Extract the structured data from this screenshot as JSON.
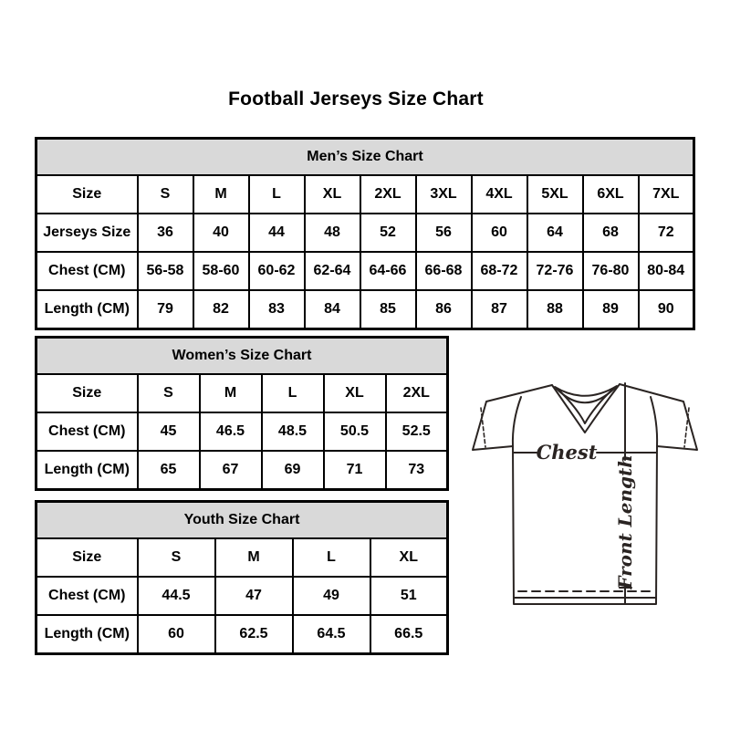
{
  "page": {
    "title": "Football Jerseys Size Chart"
  },
  "chart_data": [
    {
      "type": "table",
      "title": "Men’s Size Chart",
      "rows": [
        {
          "label": "Size",
          "values": [
            "S",
            "M",
            "L",
            "XL",
            "2XL",
            "3XL",
            "4XL",
            "5XL",
            "6XL",
            "7XL"
          ]
        },
        {
          "label": "Jerseys Size",
          "values": [
            "36",
            "40",
            "44",
            "48",
            "52",
            "56",
            "60",
            "64",
            "68",
            "72"
          ]
        },
        {
          "label": "Chest (CM)",
          "values": [
            "56-58",
            "58-60",
            "60-62",
            "62-64",
            "64-66",
            "66-68",
            "68-72",
            "72-76",
            "76-80",
            "80-84"
          ]
        },
        {
          "label": "Length (CM)",
          "values": [
            "79",
            "82",
            "83",
            "84",
            "85",
            "86",
            "87",
            "88",
            "89",
            "90"
          ]
        }
      ]
    },
    {
      "type": "table",
      "title": "Women’s Size Chart",
      "rows": [
        {
          "label": "Size",
          "values": [
            "S",
            "M",
            "L",
            "XL",
            "2XL"
          ]
        },
        {
          "label": "Chest (CM)",
          "values": [
            "45",
            "46.5",
            "48.5",
            "50.5",
            "52.5"
          ]
        },
        {
          "label": "Length (CM)",
          "values": [
            "65",
            "67",
            "69",
            "71",
            "73"
          ]
        }
      ]
    },
    {
      "type": "table",
      "title": "Youth Size Chart",
      "rows": [
        {
          "label": "Size",
          "values": [
            "S",
            "M",
            "L",
            "XL"
          ]
        },
        {
          "label": "Chest (CM)",
          "values": [
            "44.5",
            "47",
            "49",
            "51"
          ]
        },
        {
          "label": "Length (CM)",
          "values": [
            "60",
            "62.5",
            "64.5",
            "66.5"
          ]
        }
      ]
    }
  ],
  "diagram": {
    "chest_label": "Chest",
    "front_length_label": "Front Length"
  },
  "colors": {
    "header_bg": "#d9d9d9",
    "table_border": "#000000",
    "diagram_line": "#2a2422"
  }
}
